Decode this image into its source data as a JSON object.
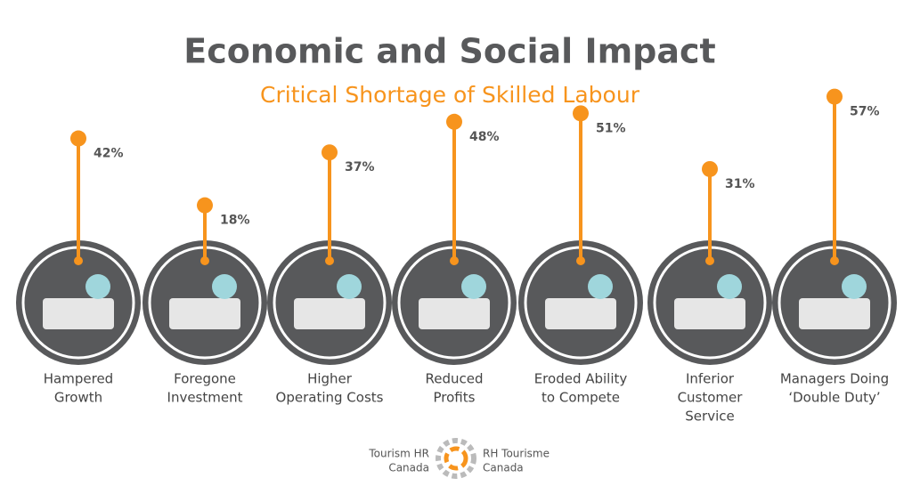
{
  "chart_data": {
    "type": "lollipop",
    "title": "Economic and Social Impact",
    "subtitle": "Critical Shortage of Skilled Labour",
    "categories": [
      [
        "Hampered",
        "Growth"
      ],
      [
        "Foregone",
        "Investment"
      ],
      [
        "Higher",
        "Operating Costs"
      ],
      [
        "Reduced",
        "Profits"
      ],
      [
        "Eroded Ability",
        "to Compete"
      ],
      [
        "Inferior",
        "Customer",
        "Service"
      ],
      [
        "Managers Doing",
        "‘Double Duty’"
      ]
    ],
    "values": [
      42,
      18,
      37,
      48,
      51,
      31,
      57
    ],
    "value_labels": [
      "42%",
      "18%",
      "37%",
      "48%",
      "51%",
      "31%",
      "57%"
    ],
    "color": "#f7941d"
  },
  "footer": {
    "left": [
      "Tourism HR",
      "Canada"
    ],
    "right": [
      "RH Tourisme",
      "Canada"
    ]
  }
}
